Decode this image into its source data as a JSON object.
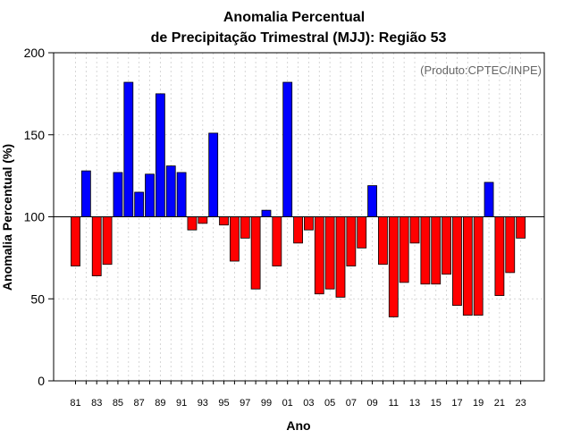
{
  "chart_data": {
    "type": "bar",
    "title": "Anomalia Percentual",
    "subtitle": "de Precipitação Trimestral (MJJ): Região 53",
    "xlabel": "Ano",
    "ylabel": "Anomalia Percentual (%)",
    "annotation": "(Produto:CPTEC/INPE)",
    "baseline": 100,
    "ylim": [
      0,
      200
    ],
    "yticks": [
      "0",
      "50",
      "100",
      "150",
      "200"
    ],
    "grid": true,
    "colors": {
      "above": "#0000ff",
      "below": "#ff0000",
      "edge": "#000000",
      "grid": "#cccccc"
    },
    "categories": [
      "81",
      "82",
      "83",
      "84",
      "85",
      "86",
      "87",
      "88",
      "89",
      "90",
      "91",
      "92",
      "93",
      "94",
      "95",
      "96",
      "97",
      "98",
      "99",
      "00",
      "01",
      "02",
      "03",
      "04",
      "05",
      "06",
      "07",
      "08",
      "09",
      "10",
      "11",
      "12",
      "13",
      "14",
      "15",
      "16",
      "17",
      "18",
      "19",
      "20",
      "21",
      "22",
      "23"
    ],
    "xtick_labels": [
      "81",
      "83",
      "85",
      "87",
      "89",
      "91",
      "93",
      "95",
      "97",
      "99",
      "01",
      "03",
      "05",
      "07",
      "09",
      "11",
      "13",
      "15",
      "17",
      "19",
      "21",
      "23"
    ],
    "values": [
      70,
      128,
      64,
      71,
      127,
      182,
      115,
      126,
      175,
      131,
      127,
      92,
      96,
      151,
      95,
      73,
      87,
      56,
      104,
      70,
      182,
      84,
      92,
      53,
      56,
      51,
      70,
      81,
      119,
      71,
      39,
      60,
      84,
      59,
      59,
      65,
      46,
      40,
      40,
      121,
      52,
      66,
      87
    ]
  }
}
